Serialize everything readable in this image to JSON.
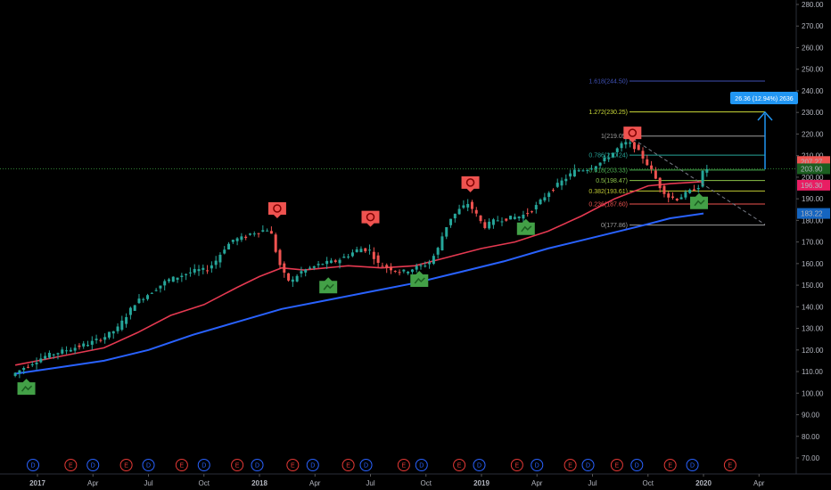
{
  "chart_data": {
    "type": "candlestick",
    "y_axis": {
      "ticks": [
        "280.00",
        "270.00",
        "260.00",
        "250.00",
        "240.00",
        "230.00",
        "220.00",
        "210.00",
        "200.00",
        "190.00",
        "180.00",
        "170.00",
        "160.00",
        "150.00",
        "140.00",
        "130.00",
        "120.00",
        "110.00",
        "100.00",
        "90.00",
        "80.00",
        "70.00"
      ],
      "ylim": [
        66,
        282
      ]
    },
    "x_axis": {
      "ticks": [
        "2017",
        "Apr",
        "Jul",
        "Oct",
        "2018",
        "Apr",
        "Jul",
        "Oct",
        "2019",
        "Apr",
        "Jul",
        "Oct",
        "2020",
        "Apr"
      ],
      "bold": [
        "2017",
        "2018",
        "2019",
        "2020"
      ]
    },
    "price_labels": [
      {
        "text": "207.27",
        "value": 207.27,
        "color": "#ef5350"
      },
      {
        "text": "203.90",
        "value": 203.9,
        "color": "#1b5e20"
      },
      {
        "text": "196.30",
        "value": 196.3,
        "color": "#e91e63"
      },
      {
        "text": "183.22",
        "value": 183.22,
        "color": "#1565c0"
      }
    ],
    "fib_levels": [
      {
        "label": "0(177.86)",
        "value": 177.86,
        "color": "#9e9e9e"
      },
      {
        "label": "0.236(187.60)",
        "value": 187.6,
        "color": "#ef5350"
      },
      {
        "label": "0.382(193.61)",
        "value": 193.61,
        "color": "#c0ca33"
      },
      {
        "label": "0.5(198.47)",
        "value": 198.47,
        "color": "#8bc34a"
      },
      {
        "label": "0.618(203.33)",
        "value": 203.33,
        "color": "#4caf50"
      },
      {
        "label": "0.786(210.24)",
        "value": 210.24,
        "color": "#26a69a"
      },
      {
        "label": "1(219.05)",
        "value": 219.05,
        "color": "#9e9e9e"
      },
      {
        "label": "1.272(230.25)",
        "value": 230.25,
        "color": "#cddc39"
      },
      {
        "label": "1.618(244.50)",
        "value": 244.5,
        "color": "#3f51b5"
      }
    ],
    "projection": {
      "label": "26.36 (12.94%) 2636"
    },
    "signals": [
      {
        "kind": "bull",
        "date": 2016.95,
        "value": 105
      },
      {
        "kind": "bear",
        "date": 2018.08,
        "value": 181
      },
      {
        "kind": "bull",
        "date": 2018.31,
        "value": 152
      },
      {
        "kind": "bear",
        "date": 2018.5,
        "value": 177
      },
      {
        "kind": "bull",
        "date": 2018.72,
        "value": 155
      },
      {
        "kind": "bear",
        "date": 2018.95,
        "value": 193
      },
      {
        "kind": "bull",
        "date": 2019.2,
        "value": 179
      },
      {
        "kind": "bear",
        "date": 2019.68,
        "value": 216
      },
      {
        "kind": "bull",
        "date": 2019.98,
        "value": 191
      }
    ],
    "events": [
      {
        "t": "D",
        "date": 2016.98
      },
      {
        "t": "E",
        "date": 2017.15
      },
      {
        "t": "D",
        "date": 2017.25
      },
      {
        "t": "E",
        "date": 2017.4
      },
      {
        "t": "D",
        "date": 2017.5
      },
      {
        "t": "E",
        "date": 2017.65
      },
      {
        "t": "D",
        "date": 2017.75
      },
      {
        "t": "E",
        "date": 2017.9
      },
      {
        "t": "D",
        "date": 2017.99
      },
      {
        "t": "E",
        "date": 2018.15
      },
      {
        "t": "D",
        "date": 2018.24
      },
      {
        "t": "E",
        "date": 2018.4
      },
      {
        "t": "D",
        "date": 2018.48
      },
      {
        "t": "E",
        "date": 2018.65
      },
      {
        "t": "D",
        "date": 2018.73
      },
      {
        "t": "E",
        "date": 2018.9
      },
      {
        "t": "D",
        "date": 2018.99
      },
      {
        "t": "E",
        "date": 2019.16
      },
      {
        "t": "D",
        "date": 2019.25
      },
      {
        "t": "E",
        "date": 2019.4
      },
      {
        "t": "D",
        "date": 2019.48
      },
      {
        "t": "E",
        "date": 2019.61
      },
      {
        "t": "D",
        "date": 2019.7
      },
      {
        "t": "E",
        "date": 2019.85
      },
      {
        "t": "D",
        "date": 2019.95
      },
      {
        "t": "E",
        "date": 2020.12
      }
    ],
    "ma_red": [
      [
        2016.9,
        113
      ],
      [
        2017.1,
        117
      ],
      [
        2017.3,
        121
      ],
      [
        2017.45,
        128
      ],
      [
        2017.6,
        136
      ],
      [
        2017.75,
        141
      ],
      [
        2017.9,
        149
      ],
      [
        2018.0,
        154
      ],
      [
        2018.1,
        158
      ],
      [
        2018.2,
        157
      ],
      [
        2018.3,
        158
      ],
      [
        2018.4,
        159
      ],
      [
        2018.55,
        158
      ],
      [
        2018.7,
        159
      ],
      [
        2018.85,
        163
      ],
      [
        2019.0,
        167
      ],
      [
        2019.15,
        170
      ],
      [
        2019.3,
        175
      ],
      [
        2019.45,
        182
      ],
      [
        2019.6,
        190
      ],
      [
        2019.75,
        196
      ],
      [
        2019.85,
        197
      ],
      [
        2020.0,
        198
      ]
    ],
    "ma_blue": [
      [
        2016.9,
        109
      ],
      [
        2017.1,
        112
      ],
      [
        2017.3,
        115
      ],
      [
        2017.5,
        120
      ],
      [
        2017.7,
        127
      ],
      [
        2017.9,
        133
      ],
      [
        2018.1,
        139
      ],
      [
        2018.3,
        143
      ],
      [
        2018.5,
        147
      ],
      [
        2018.7,
        151
      ],
      [
        2018.9,
        156
      ],
      [
        2019.1,
        161
      ],
      [
        2019.3,
        167
      ],
      [
        2019.5,
        172
      ],
      [
        2019.7,
        177
      ],
      [
        2019.85,
        181
      ],
      [
        2020.0,
        183.2
      ]
    ],
    "price_path": [
      [
        2016.9,
        108
      ],
      [
        2016.96,
        112
      ],
      [
        2017.05,
        117
      ],
      [
        2017.15,
        120
      ],
      [
        2017.25,
        123
      ],
      [
        2017.32,
        126
      ],
      [
        2017.38,
        130
      ],
      [
        2017.42,
        136
      ],
      [
        2017.46,
        142
      ],
      [
        2017.52,
        146
      ],
      [
        2017.6,
        152
      ],
      [
        2017.68,
        155
      ],
      [
        2017.74,
        157
      ],
      [
        2017.78,
        157
      ],
      [
        2017.82,
        161
      ],
      [
        2017.86,
        167
      ],
      [
        2017.9,
        171
      ],
      [
        2017.95,
        172
      ],
      [
        2017.98,
        174
      ],
      [
        2018.02,
        175
      ],
      [
        2018.06,
        176
      ],
      [
        2018.08,
        172
      ],
      [
        2018.1,
        162
      ],
      [
        2018.13,
        155
      ],
      [
        2018.16,
        151
      ],
      [
        2018.2,
        156
      ],
      [
        2018.25,
        158
      ],
      [
        2018.3,
        160
      ],
      [
        2018.36,
        161
      ],
      [
        2018.42,
        164
      ],
      [
        2018.47,
        167
      ],
      [
        2018.52,
        166
      ],
      [
        2018.55,
        160
      ],
      [
        2018.6,
        158
      ],
      [
        2018.66,
        156
      ],
      [
        2018.72,
        158
      ],
      [
        2018.78,
        160
      ],
      [
        2018.82,
        166
      ],
      [
        2018.85,
        175
      ],
      [
        2018.88,
        181
      ],
      [
        2018.92,
        185
      ],
      [
        2018.96,
        188
      ],
      [
        2019.0,
        182
      ],
      [
        2019.03,
        177
      ],
      [
        2019.08,
        180
      ],
      [
        2019.14,
        181
      ],
      [
        2019.2,
        182
      ],
      [
        2019.26,
        186
      ],
      [
        2019.32,
        193
      ],
      [
        2019.38,
        198
      ],
      [
        2019.44,
        203
      ],
      [
        2019.5,
        204
      ],
      [
        2019.56,
        207
      ],
      [
        2019.62,
        212
      ],
      [
        2019.66,
        216
      ],
      [
        2019.7,
        215
      ],
      [
        2019.74,
        210
      ],
      [
        2019.78,
        204
      ],
      [
        2019.82,
        196
      ],
      [
        2019.86,
        191
      ],
      [
        2019.9,
        190
      ],
      [
        2019.95,
        193
      ],
      [
        2020.0,
        196
      ],
      [
        2020.02,
        203.9
      ]
    ]
  }
}
